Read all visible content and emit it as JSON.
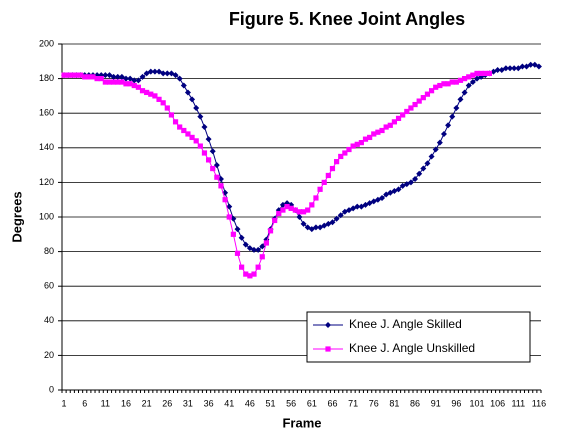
{
  "chart_data": {
    "type": "line",
    "title": "Figure 5. Knee Joint Angles",
    "x_label": "Frame",
    "y_label": "Degrees",
    "categories": [
      "1",
      null,
      null,
      null,
      null,
      "6",
      null,
      null,
      null,
      null,
      "11",
      null,
      null,
      null,
      null,
      "16",
      null,
      null,
      null,
      null,
      "21",
      null,
      null,
      null,
      null,
      "26",
      null,
      null,
      null,
      null,
      "31",
      null,
      null,
      null,
      null,
      "36",
      null,
      null,
      null,
      null,
      "41",
      null,
      null,
      null,
      null,
      "46",
      null,
      null,
      null,
      null,
      "51",
      null,
      null,
      null,
      null,
      "56",
      null,
      null,
      null,
      null,
      "61",
      null,
      null,
      null,
      null,
      "66",
      null,
      null,
      null,
      null,
      "71",
      null,
      null,
      null,
      null,
      "76",
      null,
      null,
      null,
      null,
      "81",
      null,
      null,
      null,
      null,
      "86",
      null,
      null,
      null,
      null,
      "91",
      null,
      null,
      null,
      null,
      "96",
      null,
      null,
      null,
      null,
      "101",
      null,
      null,
      null,
      null,
      "106",
      null,
      null,
      null,
      null,
      "111",
      null,
      null,
      null,
      null,
      "116"
    ],
    "series": [
      {
        "name": "Knee J. Angle Skilled",
        "color": "#000080",
        "marker": "diamond",
        "values": [
          182,
          182,
          182,
          182,
          182,
          182,
          182,
          182,
          182,
          182,
          182,
          182,
          181,
          181,
          181,
          180,
          180,
          179,
          179,
          181,
          183,
          184,
          184,
          184,
          183,
          183,
          183,
          182,
          180,
          176,
          172,
          168,
          163,
          158,
          152,
          145,
          138,
          130,
          122,
          114,
          106,
          99,
          93,
          88,
          84,
          82,
          81,
          81,
          83,
          87,
          93,
          99,
          104,
          107,
          108,
          107,
          104,
          100,
          96,
          94,
          93,
          94,
          94,
          95,
          96,
          97,
          99,
          101,
          103,
          104,
          105,
          106,
          106,
          107,
          108,
          109,
          110,
          111,
          113,
          114,
          115,
          116,
          118,
          119,
          120,
          122,
          125,
          128,
          131,
          135,
          139,
          143,
          148,
          153,
          158,
          163,
          168,
          172,
          176,
          178,
          180,
          181,
          182,
          183,
          184,
          185,
          185,
          186,
          186,
          186,
          186,
          187,
          187,
          188,
          188,
          187
        ]
      },
      {
        "name": "Knee J. Angle Unskilled",
        "color": "#FF00FF",
        "marker": "square",
        "values": [
          182,
          182,
          182,
          182,
          182,
          181,
          181,
          181,
          180,
          180,
          178,
          178,
          178,
          178,
          178,
          177,
          177,
          176,
          175,
          173,
          172,
          171,
          170,
          168,
          166,
          163,
          159,
          155,
          152,
          150,
          148,
          146,
          144,
          141,
          137,
          133,
          128,
          123,
          118,
          110,
          100,
          90,
          79,
          71,
          67,
          66,
          67,
          71,
          77,
          85,
          92,
          98,
          102,
          104,
          106,
          105,
          104,
          103,
          103,
          104,
          107,
          111,
          116,
          120,
          124,
          128,
          132,
          135,
          137,
          139,
          141,
          142,
          143,
          145,
          146,
          148,
          149,
          150,
          152,
          153,
          155,
          157,
          159,
          161,
          163,
          165,
          167,
          169,
          171,
          173,
          175,
          176,
          177,
          177,
          178,
          178,
          179,
          180,
          181,
          182,
          183,
          183,
          183,
          183,
          null,
          null,
          null,
          null,
          null,
          null,
          null,
          null,
          null,
          null,
          null,
          null
        ]
      }
    ],
    "ylim": [
      0,
      200
    ],
    "yticks": [
      0,
      20,
      40,
      60,
      80,
      100,
      120,
      140,
      160,
      180,
      200
    ],
    "grid": true,
    "legend": "lower right"
  }
}
